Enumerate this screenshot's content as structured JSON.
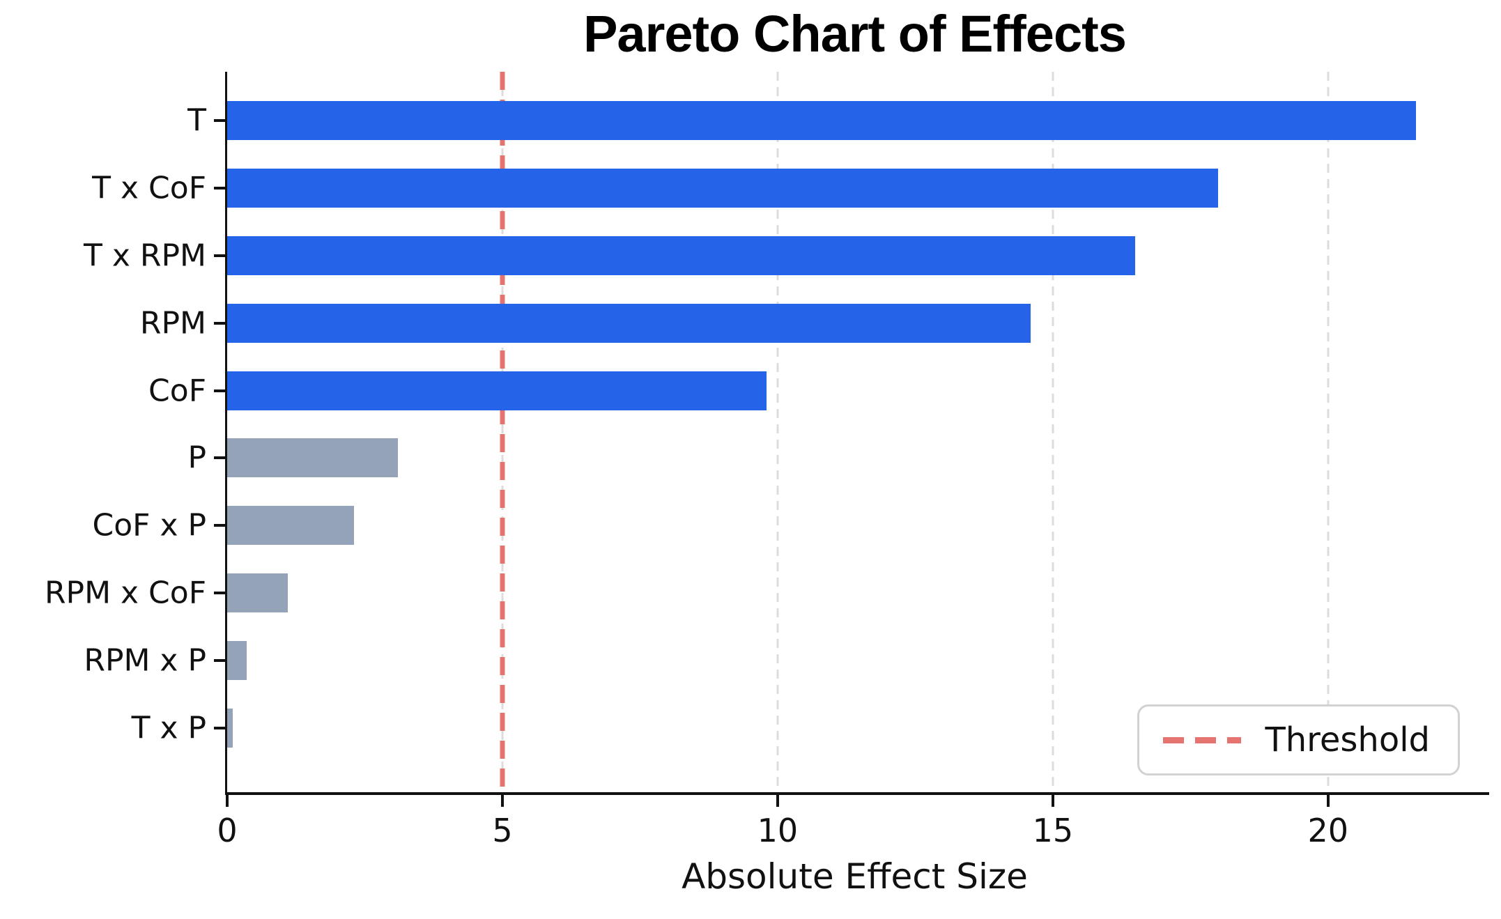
{
  "chart_data": {
    "type": "bar",
    "orientation": "horizontal",
    "title": "Pareto Chart of Effects",
    "xlabel": "Absolute Effect Size",
    "categories": [
      "T",
      "T x CoF",
      "T x RPM",
      "RPM",
      "CoF",
      "P",
      "CoF x P",
      "RPM x CoF",
      "RPM x P",
      "T x P"
    ],
    "values": [
      21.6,
      18.0,
      16.5,
      14.6,
      9.8,
      3.1,
      2.3,
      1.1,
      0.35,
      0.1
    ],
    "threshold": 5,
    "xticks": [
      0,
      5,
      10,
      15,
      20
    ],
    "xtick_labels": [
      "0",
      "5",
      "10",
      "15",
      "20"
    ],
    "xlim": [
      0,
      22.8
    ],
    "grid": "vertical-dashed",
    "legend": {
      "label": "Threshold",
      "position": "lower-right",
      "line_style": "dashed"
    },
    "colors": {
      "bar_above_threshold": "#2563e8",
      "bar_below_threshold": "#94a3b8",
      "threshold_line": "#e5736f",
      "gridline": "#dcdcdc",
      "spine": "#111111"
    }
  }
}
